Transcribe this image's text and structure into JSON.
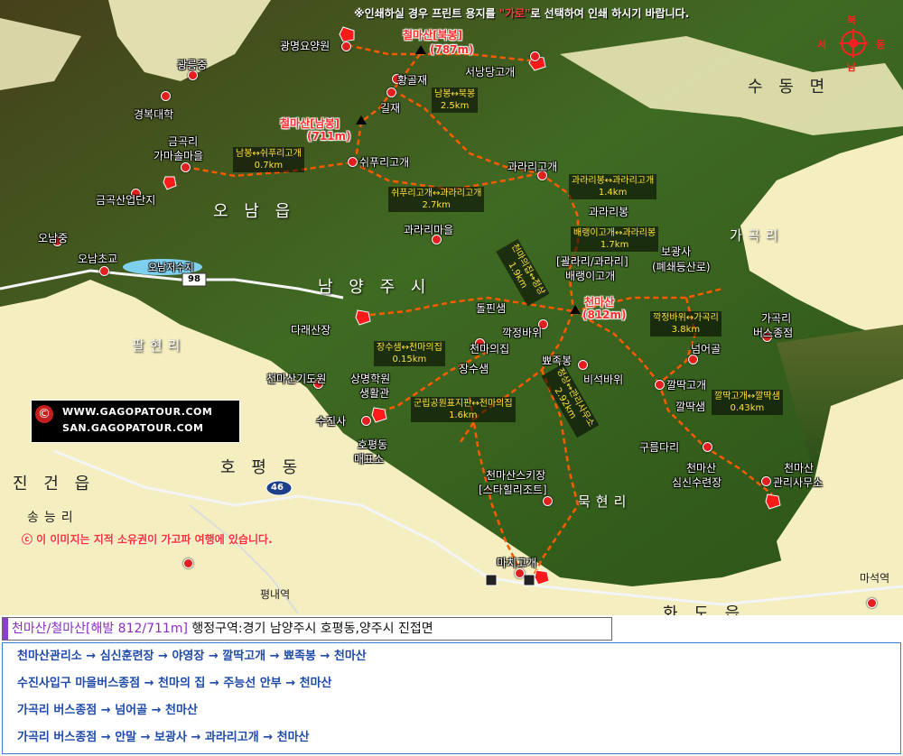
{
  "notice": {
    "prefix": "※인쇄하실 경우 프린트 용지를 ",
    "highlight": "\"가로\"",
    "suffix": "로 선택하여 인쇄 하시기 바랍니다."
  },
  "compass": {
    "north": "북",
    "south": "남",
    "west": "서",
    "east": "동"
  },
  "logo": {
    "line1": "WWW.GAGOPATOUR.COM",
    "line2": "SAN.GAGOPATOUR.COM"
  },
  "copyright": "ⓒ 이 이미지는 지적 소유권이 가고파 여행에 있습니다.",
  "areas": {
    "sudong": "수 동 면",
    "onam": "오 남 읍",
    "namyang": "남 양 주 시",
    "gagok": "가곡리",
    "palhyeon": "팔현리",
    "hopyeong": "호 평 동",
    "jingeon": "진 건 읍",
    "songneung": "송능리",
    "mukhyeon": "묵현리",
    "hwado": "화 도 읍"
  },
  "peaks": {
    "cheolma_north": "철마산[북봉]",
    "cheolma_north_h": "(787m)",
    "cheolma_south": "철마산[남봉]",
    "cheolma_south_h": "(711m)",
    "cheonma": "천마산",
    "cheonma_h": "(812m)"
  },
  "places": {
    "gwangmyeong": "광명요양원",
    "gwangneungjung": "광릉중",
    "seonang": "서낭당고개",
    "hwanggol": "황골재",
    "gyeongbok": "경복대학",
    "giljae": "길재",
    "geumgok_1": "금곡리",
    "geumgok_2": "가마솔마을",
    "swipuri": "쉬푸리고개",
    "gwarari_pass": "과라리고개",
    "geumgok_ind": "금곡산업단지",
    "gwaraibong": "과라리봉",
    "onamjung": "오남중",
    "gwarari_village": "과라리마을",
    "boggwang_1": "보광사",
    "boggwang_2": "(폐쇄등산로)",
    "onamcho": "오남초교",
    "onam_res": "오남저수지",
    "road98": "98",
    "gwarari_bracket": "[괄라리/과라리]",
    "baeraeng": "배랭이고개",
    "dolpansem": "돌핀샘",
    "dareasanjang": "다래산장",
    "gakjeong": "깍정바위",
    "cheonmauijip": "천마의집",
    "gagok_bus_1": "가곡리",
    "gagok_bus_2": "버스종점",
    "palhyeonri": "팔현리",
    "neomeogol": "넘어골",
    "jangsusaem": "장수샘",
    "bbyeojokbong": "뾰족봉",
    "biseok": "비석바위",
    "sanyang_1": "상명학원",
    "sanyang_2": "생활관",
    "cheonma_edu": "천마산기도원",
    "kkaldduk_pass": "깔딱고개",
    "kkaldduk_saem": "깔딱샘",
    "sujinsa": "수진사",
    "hopyeong_1": "호평동",
    "hopyeong_2": "매표소",
    "gureumdari": "구름다리",
    "cheonma_camp_1": "천마산",
    "cheonma_camp_2": "심신수련장",
    "cheonma_office_1": "천마산",
    "cheonma_office_2": "관리사무소",
    "ski_1": "천마산스키장",
    "ski_2": "[스타힐리조트]",
    "road46": "46",
    "pyeongnae": "평내역",
    "machigogae": "마치고개",
    "maseok": "마석역"
  },
  "segments": [
    {
      "a": "남봉↔북봉",
      "b": "2.5km"
    },
    {
      "a": "남봉↔쉬푸리고개",
      "b": "0.7km"
    },
    {
      "a": "쉬푸리고개↔과라리고개",
      "b": "2.7km"
    },
    {
      "a": "과라리봉↔과라리고개",
      "b": "1.4km"
    },
    {
      "a": "배랭이고개↔과라리봉",
      "b": "1.7km"
    },
    {
      "a": "천마의집↔정상",
      "b": "1.9km"
    },
    {
      "a": "장수샘↔천마의집",
      "b": "0.15km"
    },
    {
      "a": "깍정바위↔가곡리",
      "b": "3.8km"
    },
    {
      "a": "깔딱고개↔깔딱샘",
      "b": "0.43km"
    },
    {
      "a": "정상↔관리사무소",
      "b": "2.92km"
    },
    {
      "a": "군립공원표지판↔천마의집",
      "b": "1.6km"
    }
  ],
  "infobar": {
    "name": "천마산/철마산[해발 812/711m]",
    "rest": " 행정구역:경기 남양주시 호평동,양주시 진접면"
  },
  "routes": [
    "천마산관리소 → 심신훈련장 → 야영장 → 깔딱고개 → 뾰족봉 → 천마산",
    "수진사입구 마을버스종점 → 천마의 집 → 주능선 안부 → 천마산",
    "가곡리 버스종점 → 넘어골 → 천마산",
    "가곡리 버스종점 → 안말 → 보광사 → 과라리고개 → 천마산"
  ],
  "colors": {
    "trail": "#ff5a00",
    "plain": "#f4eec0",
    "forest": "#3f6a22",
    "river": "#7fd0ee",
    "road": "#f5f5f5",
    "marker": "#e21e1e"
  }
}
